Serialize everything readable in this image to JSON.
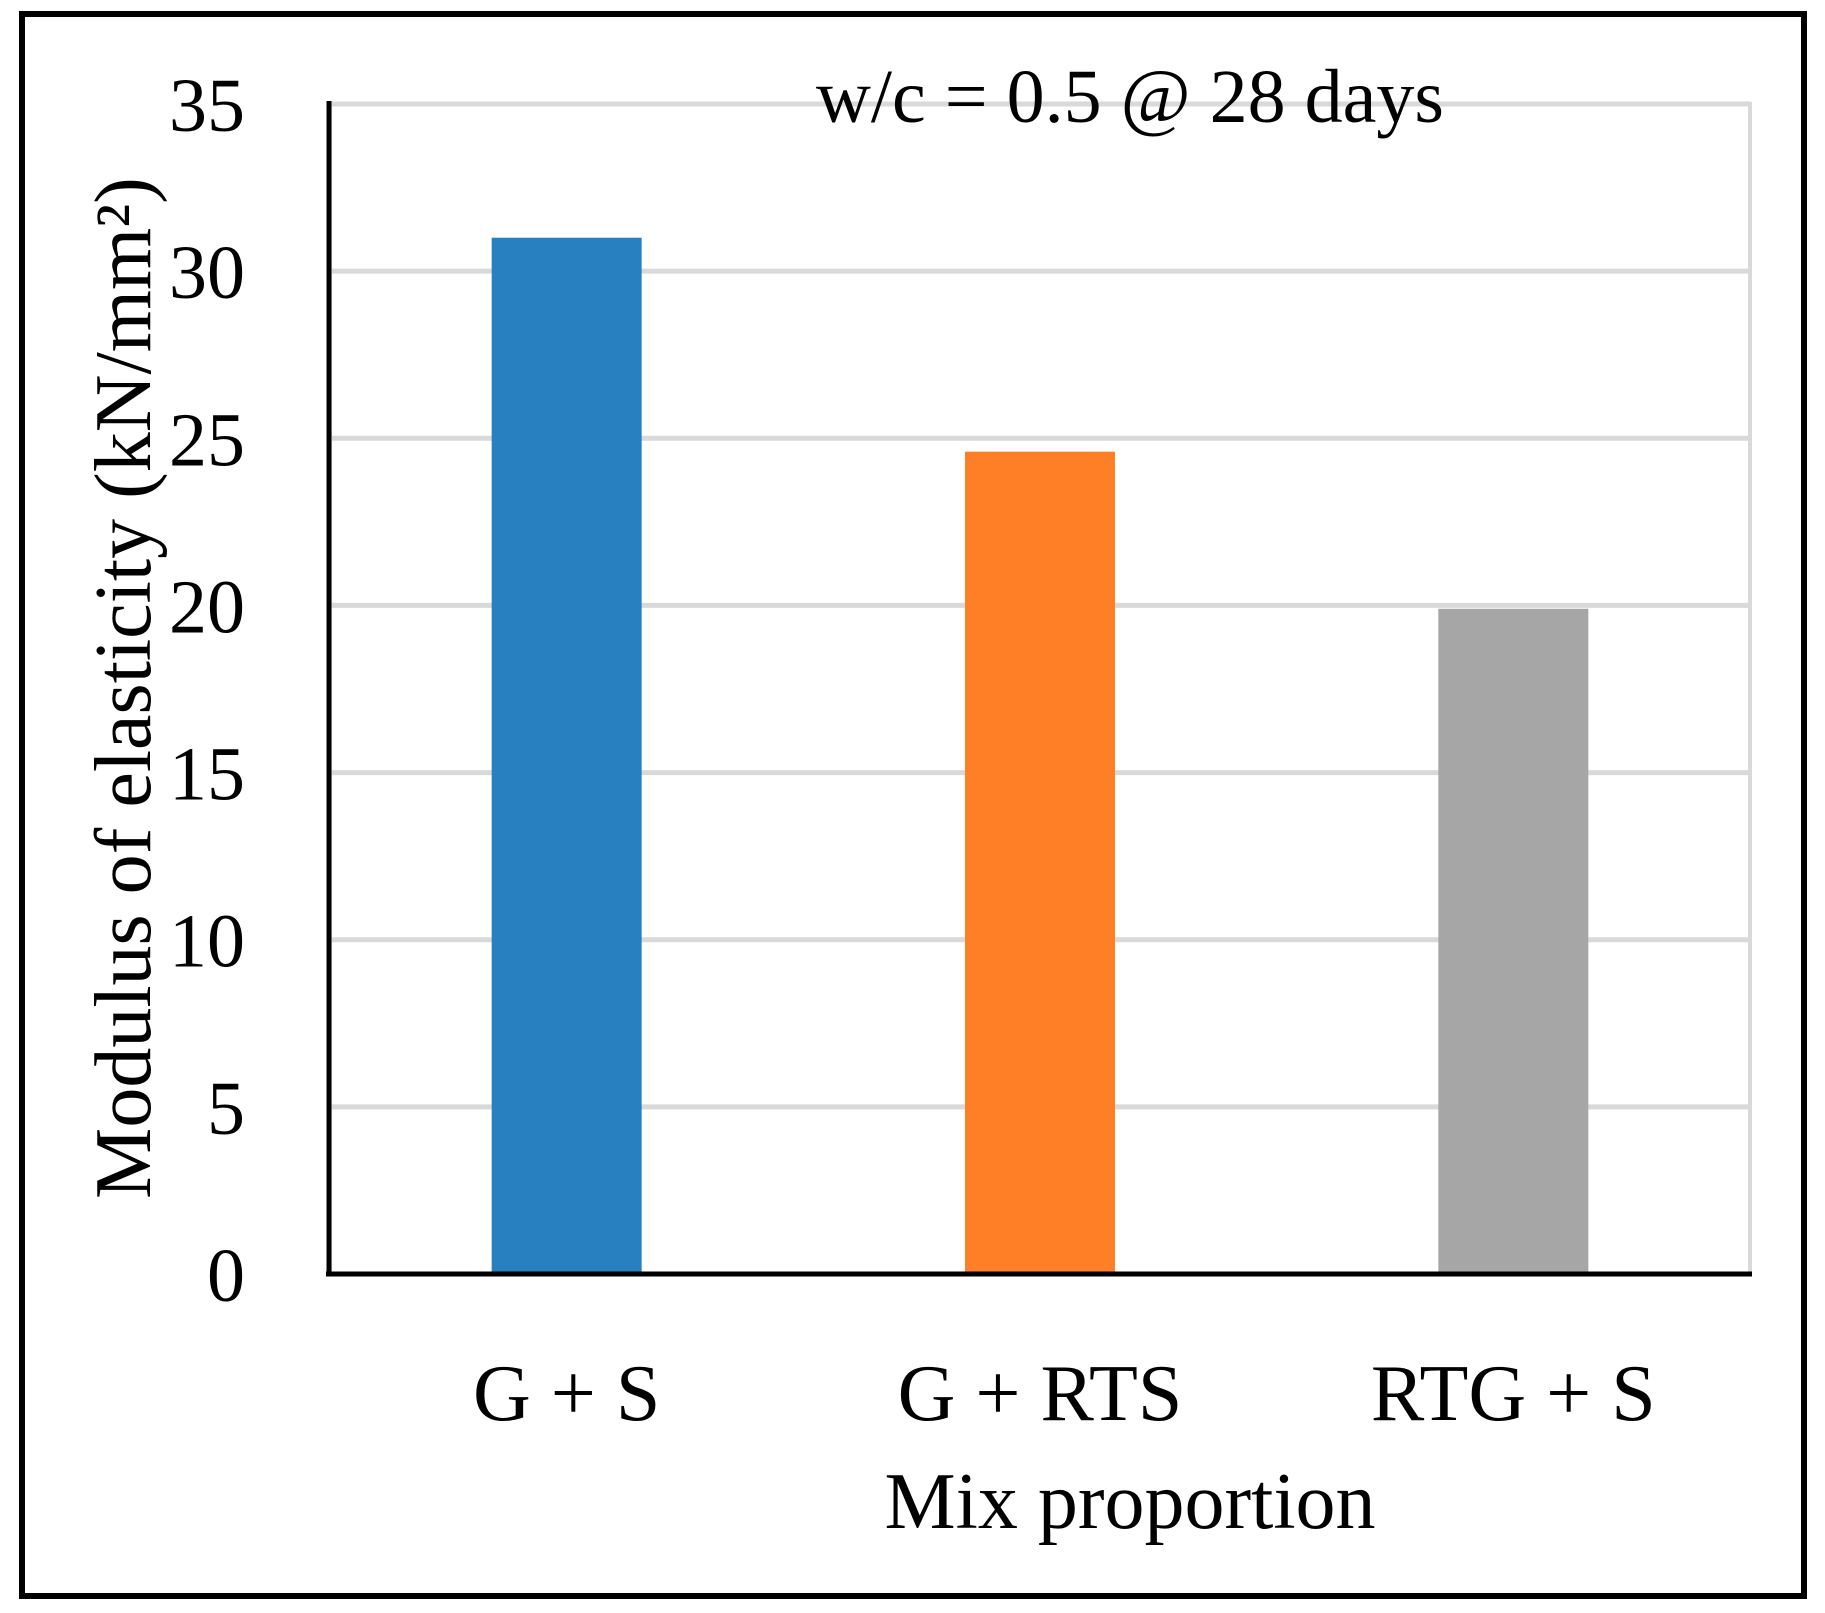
{
  "chart_data": {
    "type": "bar",
    "title": "w/c = 0.5 @ 28 days",
    "xlabel": "Mix proportion",
    "ylabel": "Modulus of elasticity (kN/mm²)",
    "categories": [
      "G + S",
      "G + RTS",
      "RTG + S"
    ],
    "values": [
      31.0,
      24.6,
      19.9
    ],
    "colors": [
      "#2980c0",
      "#ff7f27",
      "#a6a6a6"
    ],
    "ylim": [
      0,
      35
    ],
    "yticks": [
      0,
      5,
      10,
      15,
      20,
      25,
      30,
      35
    ],
    "ytick_labels": [
      "0",
      "5",
      "10",
      "15",
      "20",
      "25",
      "30",
      "35"
    ],
    "grid": true,
    "legend": "none"
  }
}
